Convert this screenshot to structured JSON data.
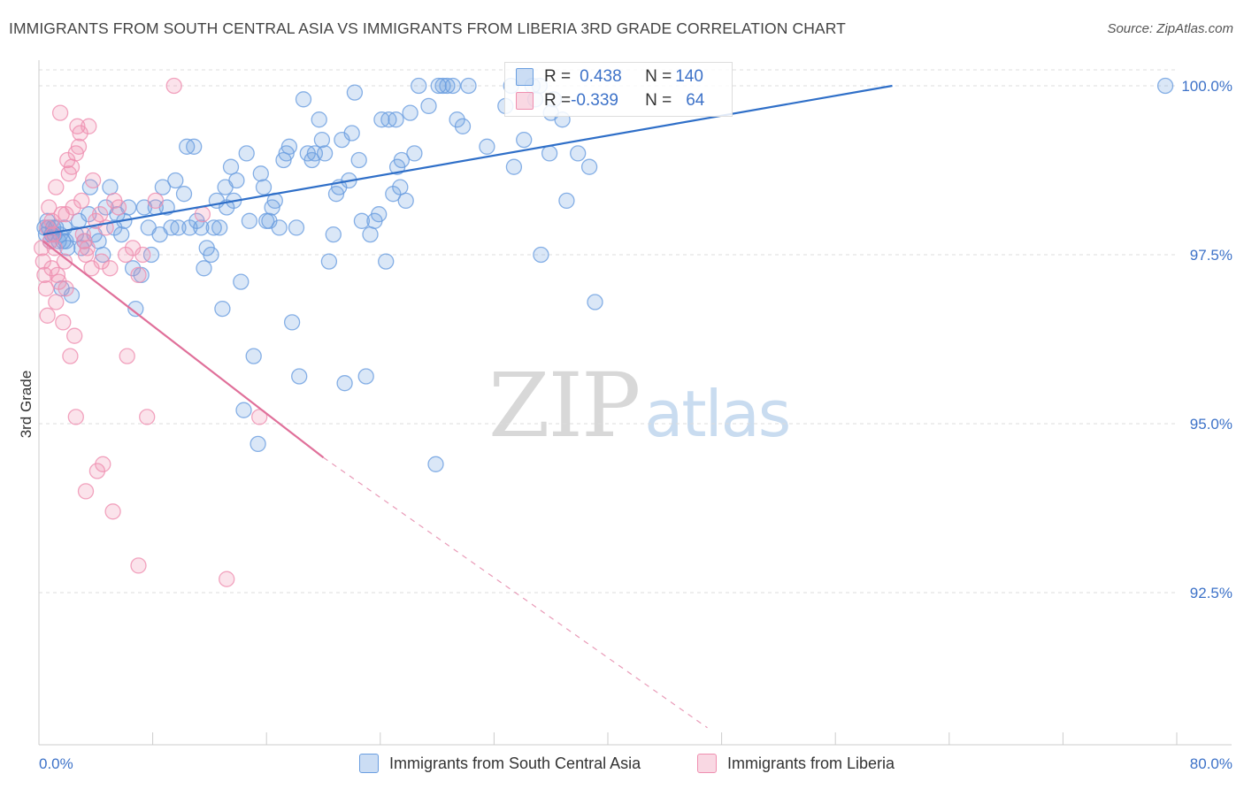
{
  "title": "IMMIGRANTS FROM SOUTH CENTRAL ASIA VS IMMIGRANTS FROM LIBERIA 3RD GRADE CORRELATION CHART",
  "source": "Source: ZipAtlas.com",
  "watermark": {
    "zip": "ZIP",
    "atlas": "atlas"
  },
  "legend": {
    "r_label": "R = ",
    "n_label": "N = ",
    "rows": [
      {
        "r": "0.438",
        "n": "140",
        "color": "#6a9ee0"
      },
      {
        "r": "-0.339",
        "n": "64",
        "color": "#ef8fb0"
      }
    ]
  },
  "bottom_legend": [
    {
      "label": "Immigrants from South Central Asia",
      "color": "#6a9ee0"
    },
    {
      "label": "Immigrants from Liberia",
      "color": "#ef8fb0"
    }
  ],
  "chart_data": {
    "type": "scatter",
    "title": "IMMIGRANTS FROM SOUTH CENTRAL ASIA VS IMMIGRANTS FROM LIBERIA 3RD GRADE CORRELATION CHART",
    "xlabel": "",
    "ylabel": "3rd Grade",
    "xlim": [
      0,
      80
    ],
    "ylim": [
      90.5,
      100.6
    ],
    "x_tick_labels": [
      "0.0%",
      "80.0%"
    ],
    "y_ticks": [
      92.5,
      95.0,
      97.5,
      100.0
    ],
    "y_tick_labels": [
      "92.5%",
      "95.0%",
      "97.5%",
      "100.0%"
    ],
    "grid": true,
    "series": [
      {
        "name": "Immigrants from South Central Asia",
        "color": "#6a9ee0",
        "trend": {
          "x": [
            0.3,
            60
          ],
          "y": [
            97.8,
            100.0
          ],
          "dashed_to": null
        },
        "points": [
          [
            0.4,
            97.9
          ],
          [
            0.5,
            97.8
          ],
          [
            0.6,
            98.0
          ],
          [
            0.7,
            97.9
          ],
          [
            0.8,
            97.7
          ],
          [
            0.9,
            97.8
          ],
          [
            1.0,
            97.9
          ],
          [
            1.1,
            97.8
          ],
          [
            1.2,
            97.9
          ],
          [
            1.4,
            97.7
          ],
          [
            1.5,
            97.8
          ],
          [
            1.7,
            97.7
          ],
          [
            1.8,
            97.9
          ],
          [
            1.9,
            97.7
          ],
          [
            2.0,
            97.6
          ],
          [
            1.6,
            97.0
          ],
          [
            2.3,
            96.9
          ],
          [
            2.6,
            97.8
          ],
          [
            2.8,
            98.0
          ],
          [
            3.0,
            97.6
          ],
          [
            3.2,
            97.7
          ],
          [
            3.5,
            98.1
          ],
          [
            3.6,
            98.5
          ],
          [
            3.9,
            97.8
          ],
          [
            4.2,
            97.7
          ],
          [
            4.5,
            97.5
          ],
          [
            4.7,
            98.2
          ],
          [
            5.0,
            98.5
          ],
          [
            5.3,
            97.9
          ],
          [
            5.5,
            98.1
          ],
          [
            5.8,
            97.8
          ],
          [
            6.0,
            98.0
          ],
          [
            6.3,
            98.2
          ],
          [
            6.6,
            97.3
          ],
          [
            6.8,
            96.7
          ],
          [
            7.2,
            97.2
          ],
          [
            7.4,
            98.2
          ],
          [
            7.7,
            97.9
          ],
          [
            7.9,
            97.5
          ],
          [
            8.2,
            98.2
          ],
          [
            8.5,
            97.8
          ],
          [
            8.7,
            98.5
          ],
          [
            9.0,
            98.2
          ],
          [
            9.3,
            97.9
          ],
          [
            9.6,
            98.6
          ],
          [
            9.8,
            97.9
          ],
          [
            10.2,
            98.4
          ],
          [
            10.4,
            99.1
          ],
          [
            10.6,
            97.9
          ],
          [
            10.9,
            99.1
          ],
          [
            11.1,
            98.0
          ],
          [
            11.4,
            97.9
          ],
          [
            11.6,
            97.3
          ],
          [
            11.8,
            97.6
          ],
          [
            12.1,
            97.5
          ],
          [
            12.3,
            97.9
          ],
          [
            12.5,
            98.3
          ],
          [
            12.7,
            97.9
          ],
          [
            12.9,
            96.7
          ],
          [
            13.1,
            98.5
          ],
          [
            13.2,
            98.2
          ],
          [
            13.5,
            98.8
          ],
          [
            13.7,
            98.3
          ],
          [
            13.9,
            98.6
          ],
          [
            14.2,
            97.1
          ],
          [
            14.4,
            95.2
          ],
          [
            14.6,
            99.0
          ],
          [
            14.8,
            98.0
          ],
          [
            15.1,
            96.0
          ],
          [
            15.4,
            94.7
          ],
          [
            15.6,
            98.7
          ],
          [
            15.8,
            98.5
          ],
          [
            16.0,
            98.0
          ],
          [
            16.2,
            98.0
          ],
          [
            16.4,
            98.2
          ],
          [
            16.6,
            98.3
          ],
          [
            16.9,
            97.9
          ],
          [
            17.2,
            98.9
          ],
          [
            17.4,
            99.0
          ],
          [
            17.6,
            99.1
          ],
          [
            17.8,
            96.5
          ],
          [
            18.1,
            97.9
          ],
          [
            18.3,
            95.7
          ],
          [
            18.6,
            99.8
          ],
          [
            18.9,
            99.0
          ],
          [
            19.2,
            98.9
          ],
          [
            19.4,
            99.0
          ],
          [
            19.7,
            99.5
          ],
          [
            19.9,
            99.2
          ],
          [
            20.1,
            99.0
          ],
          [
            20.4,
            97.4
          ],
          [
            20.7,
            97.8
          ],
          [
            20.9,
            98.4
          ],
          [
            21.1,
            98.5
          ],
          [
            21.3,
            99.2
          ],
          [
            21.5,
            95.6
          ],
          [
            21.8,
            98.6
          ],
          [
            22.0,
            99.3
          ],
          [
            22.2,
            99.9
          ],
          [
            22.5,
            98.9
          ],
          [
            22.7,
            98.0
          ],
          [
            23.0,
            95.7
          ],
          [
            23.3,
            97.8
          ],
          [
            23.6,
            98.0
          ],
          [
            23.9,
            98.1
          ],
          [
            24.1,
            99.5
          ],
          [
            24.4,
            97.4
          ],
          [
            24.6,
            99.5
          ],
          [
            24.9,
            98.4
          ],
          [
            25.2,
            98.8
          ],
          [
            25.5,
            98.9
          ],
          [
            25.8,
            98.3
          ],
          [
            26.1,
            99.6
          ],
          [
            26.4,
            99.0
          ],
          [
            26.7,
            100.0
          ],
          [
            27.4,
            99.7
          ],
          [
            28.1,
            100.0
          ],
          [
            28.4,
            100.0
          ],
          [
            28.7,
            100.0
          ],
          [
            29.1,
            100.0
          ],
          [
            29.4,
            99.5
          ],
          [
            29.8,
            99.4
          ],
          [
            30.2,
            100.0
          ],
          [
            31.5,
            99.1
          ],
          [
            32.8,
            99.7
          ],
          [
            33.4,
            98.8
          ],
          [
            34.7,
            100.0
          ],
          [
            35.3,
            97.5
          ],
          [
            35.9,
            99.0
          ],
          [
            36.2,
            99.8
          ],
          [
            37.1,
            98.3
          ],
          [
            37.9,
            99.0
          ],
          [
            38.7,
            98.8
          ],
          [
            39.1,
            96.8
          ],
          [
            34.1,
            99.2
          ],
          [
            25.1,
            99.5
          ],
          [
            25.4,
            98.5
          ],
          [
            27.9,
            94.4
          ],
          [
            33.2,
            100.0
          ],
          [
            35.2,
            100.0
          ],
          [
            36.8,
            99.5
          ],
          [
            36.0,
            99.6
          ],
          [
            34.9,
            99.8
          ],
          [
            79.2,
            100.0
          ]
        ]
      },
      {
        "name": "Immigrants from Liberia",
        "color": "#ef8fb0",
        "trend": {
          "x": [
            0.3,
            20.0
          ],
          "y": [
            97.7,
            94.5
          ],
          "dashed_to": [
            47.0,
            90.5
          ]
        },
        "points": [
          [
            0.2,
            97.6
          ],
          [
            0.3,
            97.4
          ],
          [
            0.4,
            97.2
          ],
          [
            0.5,
            97.0
          ],
          [
            0.6,
            97.9
          ],
          [
            0.7,
            98.2
          ],
          [
            0.8,
            97.7
          ],
          [
            0.9,
            98.0
          ],
          [
            1.0,
            97.8
          ],
          [
            1.1,
            97.6
          ],
          [
            1.2,
            96.8
          ],
          [
            1.3,
            97.2
          ],
          [
            1.4,
            97.1
          ],
          [
            1.5,
            99.6
          ],
          [
            1.6,
            98.1
          ],
          [
            1.7,
            96.5
          ],
          [
            1.8,
            97.4
          ],
          [
            1.9,
            98.1
          ],
          [
            2.0,
            98.9
          ],
          [
            2.1,
            98.7
          ],
          [
            2.2,
            96.0
          ],
          [
            2.3,
            98.8
          ],
          [
            2.4,
            98.2
          ],
          [
            2.5,
            96.3
          ],
          [
            2.6,
            99.0
          ],
          [
            2.7,
            99.4
          ],
          [
            2.8,
            99.1
          ],
          [
            2.9,
            99.3
          ],
          [
            3.0,
            98.3
          ],
          [
            3.1,
            97.8
          ],
          [
            3.2,
            97.7
          ],
          [
            3.3,
            97.5
          ],
          [
            3.4,
            97.6
          ],
          [
            3.5,
            99.4
          ],
          [
            3.7,
            97.3
          ],
          [
            3.8,
            98.6
          ],
          [
            4.0,
            98.0
          ],
          [
            4.3,
            98.1
          ],
          [
            4.4,
            97.4
          ],
          [
            4.7,
            97.9
          ],
          [
            5.0,
            97.3
          ],
          [
            5.3,
            98.3
          ],
          [
            5.6,
            98.2
          ],
          [
            6.1,
            97.5
          ],
          [
            6.6,
            97.6
          ],
          [
            7.0,
            97.2
          ],
          [
            7.3,
            97.5
          ],
          [
            8.2,
            98.3
          ],
          [
            9.5,
            100.0
          ],
          [
            11.5,
            98.1
          ],
          [
            1.2,
            98.5
          ],
          [
            2.6,
            95.1
          ],
          [
            3.3,
            94.0
          ],
          [
            4.1,
            94.3
          ],
          [
            4.5,
            94.4
          ],
          [
            5.2,
            93.7
          ],
          [
            7.0,
            92.9
          ],
          [
            7.6,
            95.1
          ],
          [
            13.2,
            92.7
          ],
          [
            15.5,
            95.1
          ],
          [
            6.2,
            96.0
          ],
          [
            0.6,
            96.6
          ],
          [
            1.9,
            97.0
          ],
          [
            0.9,
            97.3
          ]
        ]
      }
    ]
  }
}
